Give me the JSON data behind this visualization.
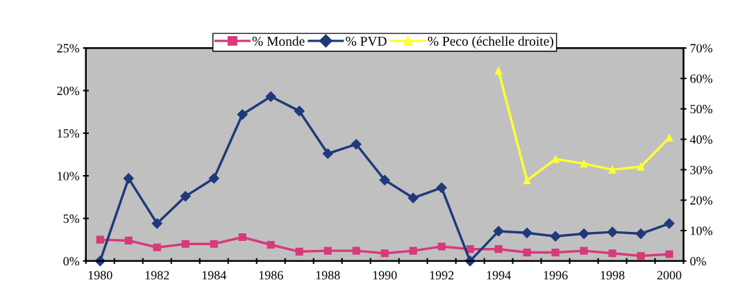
{
  "chart_data": {
    "type": "line",
    "categories": [
      "1980",
      null,
      "1982",
      null,
      "1984",
      null,
      "1986",
      null,
      "1988",
      null,
      "1990",
      null,
      "1992",
      null,
      "1994",
      null,
      "1996",
      null,
      "1998",
      null,
      "2000"
    ],
    "series": [
      {
        "name": "% Monde",
        "color": "#d63a7a",
        "marker": "square",
        "values": [
          2.5,
          2.4,
          1.6,
          2.0,
          2.0,
          2.8,
          1.9,
          1.1,
          1.2,
          1.2,
          0.9,
          1.2,
          1.7,
          1.4,
          1.4,
          1.0,
          1.0,
          1.2,
          0.9,
          0.6,
          0.8
        ]
      },
      {
        "name": "% PVD",
        "color": "#1f3a7a",
        "marker": "diamond",
        "values": [
          0,
          9.7,
          4.4,
          7.6,
          9.7,
          17.2,
          19.3,
          17.6,
          12.6,
          13.7,
          9.5,
          7.4,
          8.6,
          0,
          3.5,
          3.3,
          2.9,
          3.2,
          3.4,
          3.2,
          4.4
        ]
      },
      {
        "name": "% Peco (échelle droite)",
        "color": "#ffff33",
        "marker": "triangle",
        "axis": "y2",
        "values": [
          null,
          null,
          null,
          null,
          null,
          null,
          null,
          null,
          null,
          null,
          null,
          null,
          null,
          null,
          62.5,
          26.5,
          33.5,
          32,
          30,
          31,
          40.5
        ]
      }
    ],
    "ylim": [
      0,
      25
    ],
    "yticks": [
      {
        "value": 0,
        "label": "0%"
      },
      {
        "value": 5,
        "label": "5%"
      },
      {
        "value": 10,
        "label": "10%"
      },
      {
        "value": 15,
        "label": "15%"
      },
      {
        "value": 20,
        "label": "20%"
      },
      {
        "value": 25,
        "label": "25%"
      }
    ],
    "y2lim": [
      0,
      70
    ],
    "y2ticks": [
      {
        "value": 0,
        "label": "0%"
      },
      {
        "value": 10,
        "label": "10%"
      },
      {
        "value": 20,
        "label": "20%"
      },
      {
        "value": 30,
        "label": "30%"
      },
      {
        "value": 40,
        "label": "40%"
      },
      {
        "value": 50,
        "label": "50%"
      },
      {
        "value": 60,
        "label": "60%"
      },
      {
        "value": 70,
        "label": "70%"
      }
    ],
    "legend": "top",
    "grid": false,
    "line_style": "solid"
  }
}
